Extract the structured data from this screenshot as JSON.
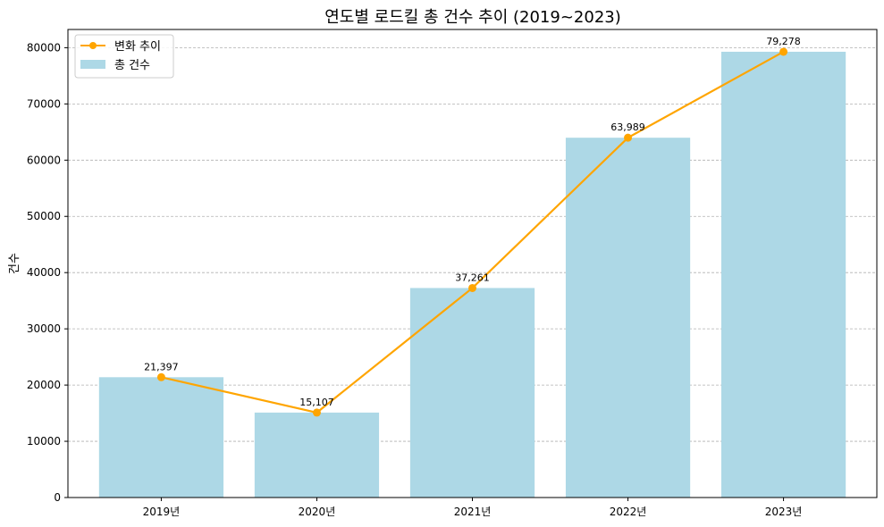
{
  "chart_data": {
    "type": "bar",
    "title": "연도별 로드킬 총 건수 추이 (2019~2023)",
    "xlabel": "",
    "ylabel": "건수",
    "categories": [
      "2019년",
      "2020년",
      "2021년",
      "2022년",
      "2023년"
    ],
    "series": [
      {
        "name": "총 건수",
        "type": "bar",
        "values": [
          21397,
          15107,
          37261,
          63989,
          79278
        ],
        "color": "#add8e6"
      },
      {
        "name": "변화 추이",
        "type": "line",
        "values": [
          21397,
          15107,
          37261,
          63989,
          79278
        ],
        "color": "#ffa500"
      }
    ],
    "data_labels": [
      "21,397",
      "15,107",
      "37,261",
      "63,989",
      "79,278"
    ],
    "yticks": [
      0,
      10000,
      20000,
      30000,
      40000,
      50000,
      60000,
      70000,
      80000
    ],
    "ylim": [
      0,
      83240
    ],
    "grid": "y-dashed",
    "legend_position": "top-left"
  }
}
